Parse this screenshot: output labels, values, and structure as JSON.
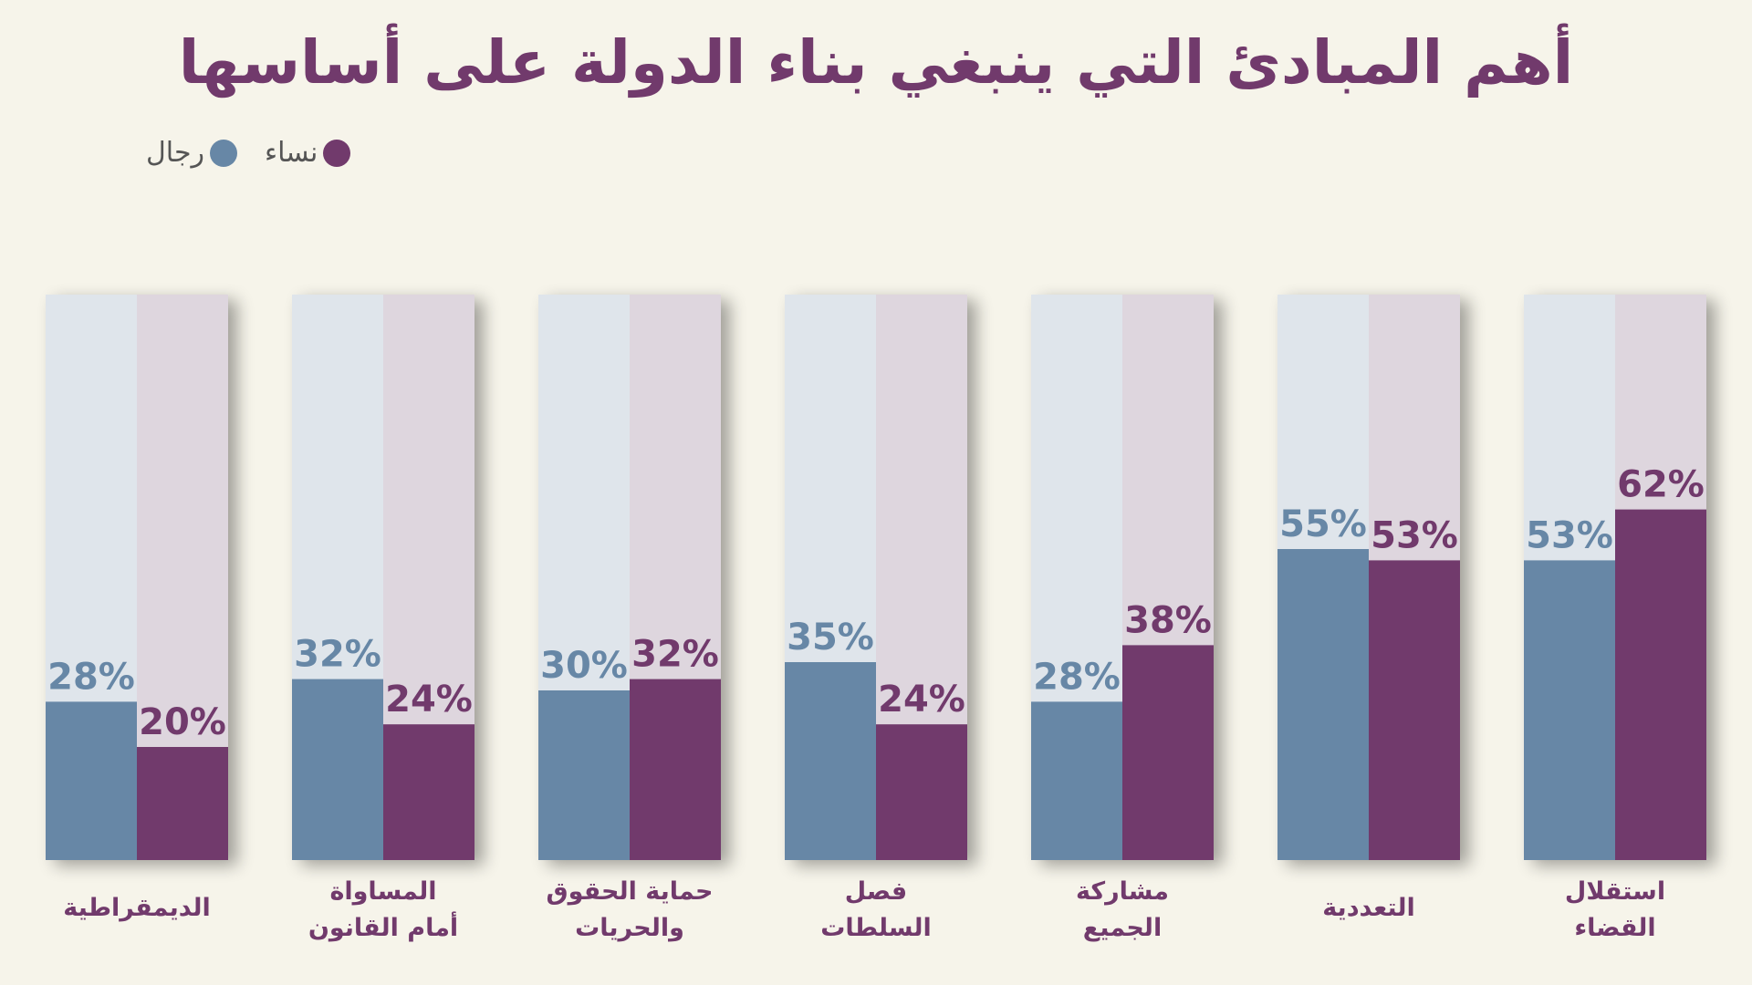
{
  "title": "أهم المبادئ التي ينبغي بناء الدولة على أساسها",
  "legend": {
    "women": "نساء",
    "men": "رجال"
  },
  "colors": {
    "men": "#6787a6",
    "women": "#713a6c",
    "men_bg": "#dfe5eb",
    "women_bg": "#ded6de",
    "background": "#f6f4ea"
  },
  "chart_data": {
    "type": "bar",
    "title": "أهم المبادئ التي ينبغي بناء الدولة على أساسها",
    "categories": [
      [
        "الديمقراطية"
      ],
      [
        "المساواة",
        "أمام القانون"
      ],
      [
        "حماية الحقوق",
        "والحريات"
      ],
      [
        "فصل",
        "السلطات"
      ],
      [
        "مشاركة",
        "الجميع"
      ],
      [
        "التعددية"
      ],
      [
        "استقلال",
        "القضاء"
      ]
    ],
    "series": [
      {
        "name": "رجال",
        "key": "men",
        "values": [
          28,
          32,
          30,
          35,
          28,
          55,
          53
        ]
      },
      {
        "name": "نساء",
        "key": "women",
        "values": [
          20,
          24,
          32,
          24,
          38,
          53,
          62
        ]
      }
    ],
    "ylim": [
      0,
      100
    ],
    "value_suffix": "%",
    "legend_position": "top-left",
    "grid": false
  }
}
